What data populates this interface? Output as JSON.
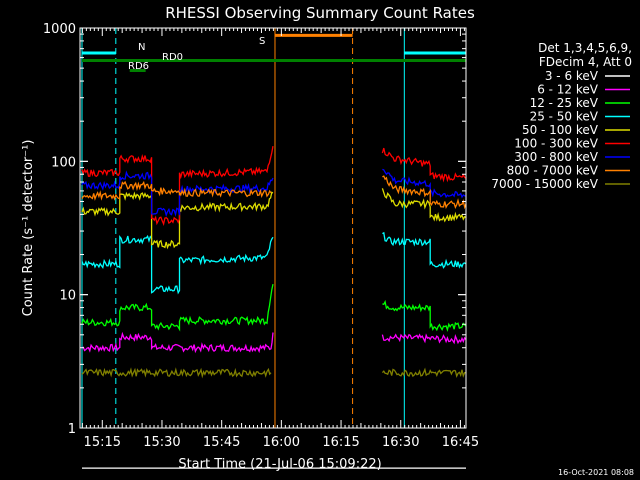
{
  "title": "RHESSI Observing Summary Count Rates",
  "xlabel": "Start Time (21-Jul-06 15:09:22)",
  "timestamp": "16-Oct-2021 08:08",
  "chart_data": {
    "type": "line",
    "title": "RHESSI Observing Summary Count Rates",
    "xlabel": "Start Time (21-Jul-06 15:09:22)",
    "ylabel": "Count Rate (s⁻¹ detector⁻¹)",
    "yscale": "log",
    "ylim": [
      1,
      1000
    ],
    "xlim_minutes": [
      0,
      97
    ],
    "x_ticks": [
      {
        "label": "15:15",
        "minute": 5.6
      },
      {
        "label": "15:30",
        "minute": 20.6
      },
      {
        "label": "15:45",
        "minute": 35.6
      },
      {
        "label": "16:00",
        "minute": 50.6
      },
      {
        "label": "16:15",
        "minute": 65.6
      },
      {
        "label": "16:30",
        "minute": 80.6
      },
      {
        "label": "16:45",
        "minute": 95.6
      }
    ],
    "y_ticks": [
      {
        "label": "1",
        "value": 1
      },
      {
        "label": "10",
        "value": 10
      },
      {
        "label": "100",
        "value": 100
      },
      {
        "label": "1000",
        "value": 1000
      }
    ],
    "legend_header": [
      "Det 1,3,4,5,6,9,",
      "FDecim 4, Att 0"
    ],
    "legend_position": "right",
    "grid": false,
    "series": [
      {
        "name": "3 - 6 keV",
        "color": "#ffffff",
        "segments": [
          [
            [
              0.5,
              0
            ],
            [
              97,
              0
            ]
          ]
        ]
      },
      {
        "name": "6 - 12 keV",
        "color": "#ff00ff",
        "segments": [
          [
            [
              0.5,
              4
            ],
            [
              10,
              4
            ],
            [
              10,
              4.8
            ],
            [
              18,
              4.8
            ],
            [
              18,
              4
            ],
            [
              48,
              4
            ],
            [
              48.5,
              5.2
            ]
          ],
          [
            [
              76,
              4.8
            ],
            [
              97,
              4.6
            ]
          ]
        ]
      },
      {
        "name": "12 - 25 keV",
        "color": "#00ff00",
        "segments": [
          [
            [
              0.5,
              6.2
            ],
            [
              10,
              6.2
            ],
            [
              10,
              8
            ],
            [
              18,
              8
            ],
            [
              18,
              5.8
            ],
            [
              25,
              5.8
            ],
            [
              25,
              6.4
            ],
            [
              47,
              6.4
            ],
            [
              48.5,
              12
            ]
          ],
          [
            [
              76,
              8.5
            ],
            [
              79,
              8
            ],
            [
              88,
              8
            ],
            [
              88,
              5.8
            ],
            [
              97,
              5.8
            ]
          ]
        ]
      },
      {
        "name": "25 - 50 keV",
        "color": "#00ffff",
        "segments": [
          [
            [
              0.5,
              17
            ],
            [
              10,
              17
            ],
            [
              10,
              26
            ],
            [
              18,
              26
            ],
            [
              18,
              11
            ],
            [
              25,
              11
            ],
            [
              25,
              18
            ],
            [
              47,
              19
            ],
            [
              48.5,
              27
            ]
          ],
          [
            [
              76,
              28
            ],
            [
              78,
              25
            ],
            [
              88,
              25
            ],
            [
              88,
              17
            ],
            [
              97,
              17
            ]
          ]
        ]
      },
      {
        "name": "50 - 100 keV",
        "color": "#dddd00",
        "segments": [
          [
            [
              0.5,
              42
            ],
            [
              10,
              42
            ],
            [
              10,
              55
            ],
            [
              18,
              55
            ],
            [
              18,
              24
            ],
            [
              25,
              24
            ],
            [
              25,
              45
            ],
            [
              47,
              46
            ],
            [
              48.5,
              58
            ]
          ],
          [
            [
              76,
              60
            ],
            [
              79,
              48
            ],
            [
              88,
              48
            ],
            [
              88,
              38
            ],
            [
              97,
              38
            ]
          ]
        ]
      },
      {
        "name": "100 - 300 keV",
        "color": "#ff0000",
        "segments": [
          [
            [
              0.5,
              82
            ],
            [
              10,
              82
            ],
            [
              10,
              105
            ],
            [
              18,
              105
            ],
            [
              18,
              36
            ],
            [
              25,
              36
            ],
            [
              25,
              80
            ],
            [
              47,
              84
            ],
            [
              48.5,
              130
            ]
          ],
          [
            [
              76,
              122
            ],
            [
              79,
              105
            ],
            [
              88,
              95
            ],
            [
              88,
              78
            ],
            [
              97,
              75
            ]
          ]
        ]
      },
      {
        "name": "300 - 800 keV",
        "color": "#0000ff",
        "segments": [
          [
            [
              0.5,
              66
            ],
            [
              10,
              66
            ],
            [
              10,
              78
            ],
            [
              18,
              78
            ],
            [
              18,
              42
            ],
            [
              25,
              42
            ],
            [
              25,
              62
            ],
            [
              47,
              63
            ],
            [
              48.5,
              75
            ]
          ],
          [
            [
              76,
              90
            ],
            [
              79,
              72
            ],
            [
              88,
              68
            ],
            [
              88,
              58
            ],
            [
              97,
              55
            ]
          ]
        ]
      },
      {
        "name": "800 - 7000 keV",
        "color": "#ff8000",
        "segments": [
          [
            [
              0.5,
              55
            ],
            [
              10,
              55
            ],
            [
              10,
              66
            ],
            [
              18,
              66
            ],
            [
              18,
              60
            ],
            [
              25,
              60
            ],
            [
              25,
              58
            ],
            [
              48,
              58
            ]
          ],
          [
            [
              76,
              78
            ],
            [
              79,
              62
            ],
            [
              88,
              58
            ],
            [
              88,
              48
            ],
            [
              97,
              48
            ]
          ]
        ]
      },
      {
        "name": "7000 - 15000 keV",
        "color": "#808000",
        "segments": [
          [
            [
              0.5,
              2.6
            ],
            [
              48,
              2.6
            ]
          ],
          [
            [
              76,
              2.6
            ],
            [
              97,
              2.6
            ]
          ]
        ]
      }
    ],
    "annotations": [
      {
        "label": "N",
        "color": "#00ffff",
        "ranges": [
          [
            0.5,
            9
          ],
          [
            81.5,
            97
          ]
        ],
        "level": 650
      },
      {
        "label": "RD6",
        "color": "#008000",
        "ranges": [
          [
            12.5,
            16.5
          ]
        ],
        "level": 480
      },
      {
        "label": "RD0",
        "color": "#008000",
        "ranges": [
          [
            0.5,
            97
          ]
        ],
        "level": 570
      },
      {
        "label": "S",
        "color": "#ff8000",
        "ranges": [
          [
            49,
            68.5
          ]
        ],
        "level": 880
      }
    ],
    "vertical_markers": [
      {
        "minute": 0.5,
        "color": "#00ffff",
        "style": "solid"
      },
      {
        "minute": 9,
        "color": "#00ffff",
        "style": "dashed"
      },
      {
        "minute": 49,
        "color": "#ff8000",
        "style": "solid"
      },
      {
        "minute": 68.5,
        "color": "#ff8000",
        "style": "dashed"
      },
      {
        "minute": 81.5,
        "color": "#00ffff",
        "style": "solid"
      },
      {
        "minute": 97,
        "color": "#00ffff",
        "style": "dashed"
      }
    ]
  }
}
